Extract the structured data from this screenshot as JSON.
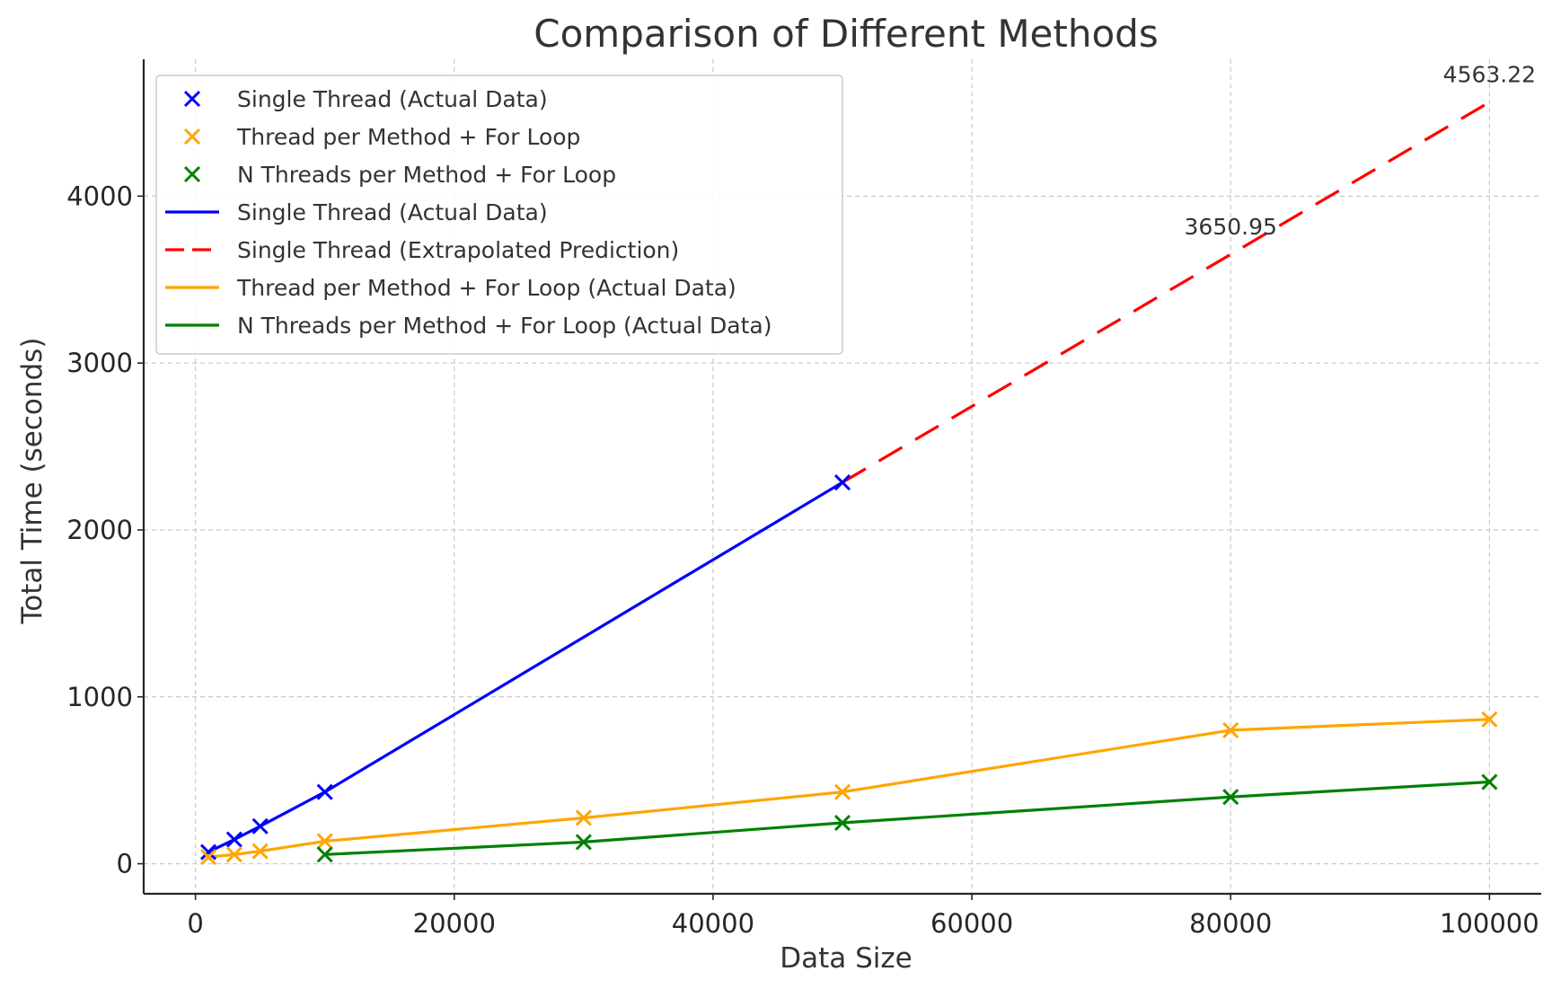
{
  "chart_data": {
    "type": "line",
    "title": "Comparison of Different Methods",
    "xlabel": "Data Size",
    "ylabel": "Total Time (seconds)",
    "xlim": [
      -4000,
      104000
    ],
    "ylim": [
      -180,
      4820
    ],
    "xticks": [
      0,
      20000,
      40000,
      60000,
      80000,
      100000
    ],
    "yticks": [
      0,
      1000,
      2000,
      3000,
      4000
    ],
    "grid": true,
    "legend_position": "top-left",
    "series": [
      {
        "name": "Single Thread (Actual Data)",
        "style": "solid",
        "markers": true,
        "color": "#0000ff",
        "x": [
          1000,
          3000,
          5000,
          10000,
          50000
        ],
        "y": [
          70,
          145,
          225,
          430,
          2285
        ]
      },
      {
        "name": "Single Thread (Extrapolated Prediction)",
        "style": "dashed",
        "markers": false,
        "color": "#ff0000",
        "x": [
          50000,
          80000,
          100000
        ],
        "y": [
          2285,
          3650.95,
          4563.22
        ]
      },
      {
        "name": "Thread per Method + For Loop (Actual Data)",
        "style": "solid",
        "markers": true,
        "color": "#ffa500",
        "x": [
          1000,
          3000,
          5000,
          10000,
          30000,
          50000,
          80000,
          100000
        ],
        "y": [
          40,
          55,
          75,
          135,
          275,
          430,
          800,
          865
        ]
      },
      {
        "name": "N Threads per Method + For Loop (Actual Data)",
        "style": "solid",
        "markers": true,
        "color": "#008000",
        "x": [
          10000,
          30000,
          50000,
          80000,
          100000
        ],
        "y": [
          55,
          130,
          245,
          400,
          490
        ]
      }
    ],
    "legend": [
      {
        "label": "Single Thread (Actual Data)",
        "kind": "marker",
        "color": "#0000ff"
      },
      {
        "label": "Thread per Method + For Loop",
        "kind": "marker",
        "color": "#ffa500"
      },
      {
        "label": "N Threads per Method + For Loop",
        "kind": "marker",
        "color": "#008000"
      },
      {
        "label": "Single Thread (Actual Data)",
        "kind": "line",
        "color": "#0000ff"
      },
      {
        "label": "Single Thread (Extrapolated Prediction)",
        "kind": "dashed",
        "color": "#ff0000"
      },
      {
        "label": "Thread per Method + For Loop (Actual Data)",
        "kind": "line",
        "color": "#ffa500"
      },
      {
        "label": "N Threads per Method + For Loop (Actual Data)",
        "kind": "line",
        "color": "#008000"
      }
    ],
    "annotations": [
      {
        "text": "3650.95",
        "x": 80000,
        "y": 3650.95
      },
      {
        "text": "4563.22",
        "x": 100000,
        "y": 4563.22
      }
    ]
  }
}
